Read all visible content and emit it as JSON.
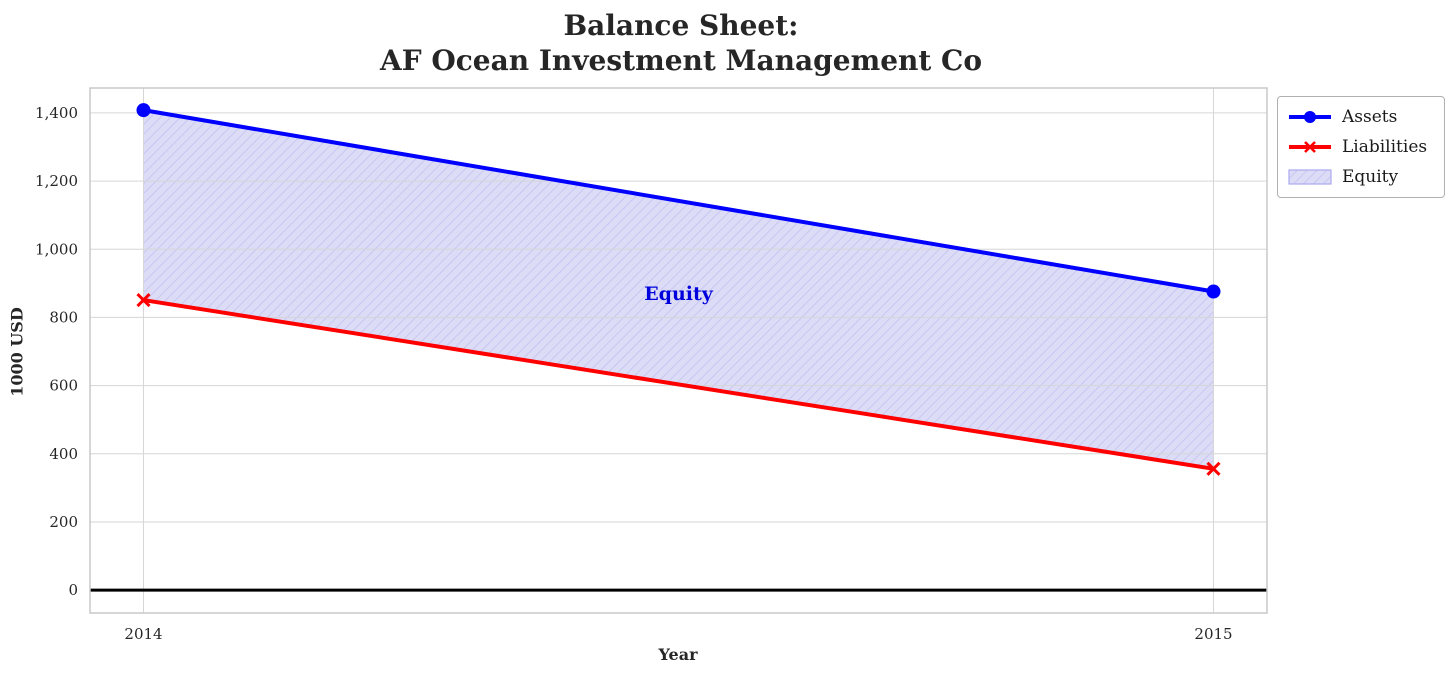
{
  "chart_data": {
    "type": "line",
    "title_line1": "Balance Sheet:",
    "title_line2": "AF Ocean Investment Management Co",
    "xlabel": "Year",
    "ylabel": "1000 USD",
    "x": [
      2014,
      2015
    ],
    "xtick_labels": [
      "2014",
      "2015"
    ],
    "yticks": [
      0,
      200,
      400,
      600,
      800,
      1000,
      1200,
      1400
    ],
    "ytick_labels": [
      "0",
      "200",
      "400",
      "600",
      "800",
      "1,000",
      "1,200",
      "1,400"
    ],
    "xlim": [
      2013.95,
      2015.05
    ],
    "ylim": [
      -67,
      1473
    ],
    "grid": true,
    "grid_color": "#d6d6d6",
    "spine_color": "#c8c8c8",
    "zero_line_color": "#000000",
    "text_color": "#262626",
    "series": [
      {
        "name": "Assets",
        "color": "#0000ff",
        "marker": "circle",
        "values": [
          1408,
          876
        ]
      },
      {
        "name": "Liabilities",
        "color": "#ff0000",
        "marker": "x",
        "values": [
          851,
          356
        ]
      }
    ],
    "area": {
      "name": "Equity",
      "between": [
        "Assets",
        "Liabilities"
      ],
      "fill": "#dcdcf7",
      "hatch": "//",
      "hatch_color": "#c2c2f0",
      "swatch_border": "#a9a9ee",
      "label": "Equity",
      "label_color": "#0000dd",
      "label_x": 2014.5,
      "label_y": 870
    },
    "legend": {
      "position": "upper-right-outside",
      "entries": [
        "Assets",
        "Liabilities",
        "Equity"
      ]
    }
  }
}
